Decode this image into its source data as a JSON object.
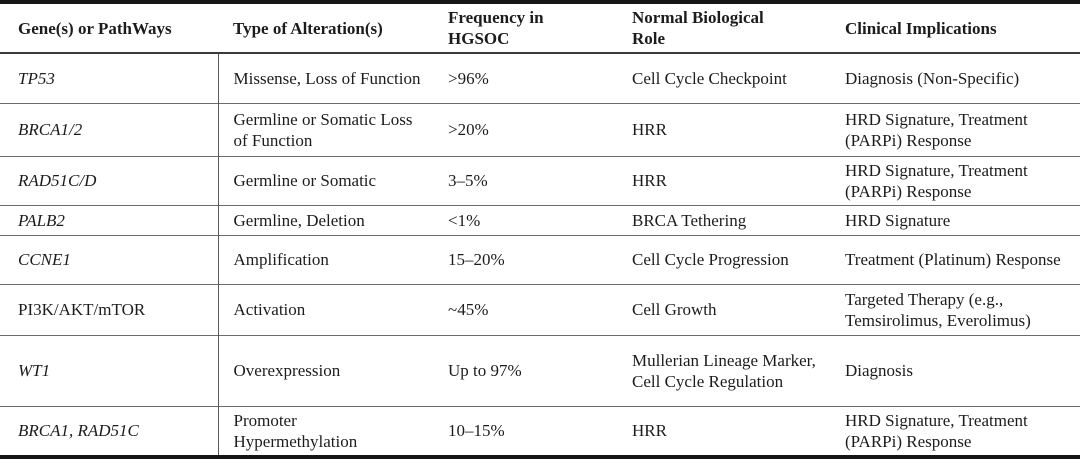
{
  "table": {
    "headers": [
      "Gene(s) or PathWays",
      "Type of Alteration(s)",
      "Frequency in HGSOC",
      "Normal Biological Role",
      "Clinical Implications"
    ],
    "rows": [
      {
        "gene": "TP53",
        "gene_class": "italic",
        "alteration": "Missense, Loss of Function",
        "frequency": ">96%",
        "role": "Cell Cycle Checkpoint",
        "implications": "Diagnosis (Non-Specific)"
      },
      {
        "gene": "BRCA1/2",
        "gene_class": "italic",
        "alteration": "Germline or Somatic Loss of Function",
        "frequency": ">20%",
        "role": "HRR",
        "implications": "HRD Signature, Treatment (PARPi) Response"
      },
      {
        "gene": "RAD51C/D",
        "gene_class": "italic",
        "alteration": "Germline or Somatic",
        "frequency": "3–5%",
        "role": "HRR",
        "implications": "HRD Signature, Treatment (PARPi) Response"
      },
      {
        "gene": "PALB2",
        "gene_class": "italic",
        "alteration": "Germline, Deletion",
        "frequency": "<1%",
        "role": "BRCA Tethering",
        "implications": "HRD Signature"
      },
      {
        "gene": "CCNE1",
        "gene_class": "italic",
        "alteration": "Amplification",
        "frequency": "15–20%",
        "role": "Cell Cycle Progression",
        "implications": "Treatment (Platinum) Response"
      },
      {
        "gene": "PI3K/AKT/mTOR",
        "gene_class": "",
        "alteration": "Activation",
        "frequency": "~45%",
        "role": "Cell Growth",
        "implications": "Targeted Therapy (e.g., Temsirolimus, Everolimus)"
      },
      {
        "gene": "WT1",
        "gene_class": "italic",
        "alteration": "Overexpression",
        "frequency": "Up to 97%",
        "role": "Mullerian Lineage Marker, Cell Cycle Regulation",
        "implications": "Diagnosis"
      },
      {
        "gene": "BRCA1, RAD51C",
        "gene_class": "italic",
        "alteration": "Promoter Hypermethylation",
        "frequency": "10–15%",
        "role": "HRR",
        "implications": "HRD Signature, Treatment (PARPi) Response"
      }
    ]
  },
  "colors": {
    "text": "#1c1c1c",
    "rule_heavy": "#161616",
    "rule_light": "#6a6a6a",
    "background": "#ffffff"
  }
}
